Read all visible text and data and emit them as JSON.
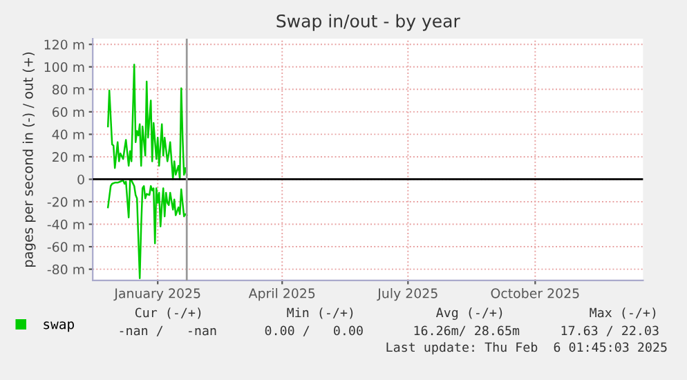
{
  "chart_data": {
    "type": "line",
    "title": "Swap in/out - by year",
    "ylabel": "pages per second in (-) / out (+)",
    "xlim": [
      "2024-11-30",
      "2026-01-02"
    ],
    "xticks": [
      {
        "value": "2025-01-16",
        "label": "January 2025"
      },
      {
        "value": "2025-04-16",
        "label": "April 2025"
      },
      {
        "value": "2025-07-16",
        "label": "July 2025"
      },
      {
        "value": "2025-10-16",
        "label": "October 2025"
      }
    ],
    "ylim": [
      -90,
      125
    ],
    "yticks": [
      {
        "value": -80,
        "label": "-80 m"
      },
      {
        "value": -60,
        "label": "-60 m"
      },
      {
        "value": -40,
        "label": "-40 m"
      },
      {
        "value": -20,
        "label": "-20 m"
      },
      0,
      {
        "value": 20,
        "label": "20 m"
      },
      {
        "value": 40,
        "label": "40 m"
      },
      {
        "value": 60,
        "label": "60 m"
      },
      {
        "value": 80,
        "label": "80 m"
      },
      {
        "value": 100,
        "label": "100 m"
      },
      {
        "value": 120,
        "label": "120 m"
      }
    ],
    "grid": true,
    "legend": "bottom left",
    "series": [
      {
        "name": "swap",
        "color": "#00cc00",
        "x": [
          "2024-12-11",
          "2024-12-12",
          "2024-12-14",
          "2024-12-15",
          "2024-12-16",
          "2024-12-18",
          "2024-12-19",
          "2024-12-20",
          "2024-12-22",
          "2024-12-23",
          "2024-12-24",
          "2024-12-26",
          "2024-12-27",
          "2024-12-28",
          "2024-12-30",
          "2024-12-31",
          "2025-01-01",
          "2025-01-02",
          "2025-01-03",
          "2025-01-04",
          "2025-01-05",
          "2025-01-07",
          "2025-01-08",
          "2025-01-09",
          "2025-01-11",
          "2025-01-12",
          "2025-01-13",
          "2025-01-15",
          "2025-01-16",
          "2025-01-17",
          "2025-01-19",
          "2025-01-20",
          "2025-01-21",
          "2025-01-23",
          "2025-01-24",
          "2025-01-25",
          "2025-01-27",
          "2025-01-28",
          "2025-01-29",
          "2025-01-31",
          "2025-02-01",
          "2025-02-02",
          "2025-02-03",
          "2025-02-04",
          "2025-02-05",
          "2025-02-06"
        ],
        "values": [
          47,
          79,
          31,
          30,
          10,
          33,
          16,
          23,
          18,
          27,
          35,
          12,
          25,
          16,
          102,
          33,
          43,
          39,
          49,
          12,
          47,
          21,
          87,
          37,
          70,
          16,
          50,
          18,
          37,
          12,
          49,
          21,
          37,
          16,
          23,
          33,
          0,
          16,
          4,
          12,
          0,
          81,
          37,
          4,
          10,
          4
        ]
      },
      {
        "color": "#00cc00",
        "x": [
          "2024-12-11",
          "2024-12-13",
          "2024-12-14",
          "2024-12-16",
          "2024-12-18",
          "2024-12-20",
          "2024-12-22",
          "2024-12-23",
          "2024-12-24",
          "2024-12-26",
          "2024-12-27",
          "2024-12-28",
          "2024-12-30",
          "2024-12-31",
          "2025-01-01",
          "2025-01-02",
          "2025-01-03",
          "2025-01-04",
          "2025-01-05",
          "2025-01-06",
          "2025-01-07",
          "2025-01-08",
          "2025-01-10",
          "2025-01-11",
          "2025-01-12",
          "2025-01-13",
          "2025-01-14",
          "2025-01-15",
          "2025-01-16",
          "2025-01-17",
          "2025-01-18",
          "2025-01-19",
          "2025-01-20",
          "2025-01-21",
          "2025-01-22",
          "2025-01-23",
          "2025-01-24",
          "2025-01-25",
          "2025-01-27",
          "2025-01-28",
          "2025-01-29",
          "2025-01-31",
          "2025-02-01",
          "2025-02-02",
          "2025-02-04",
          "2025-02-05",
          "2025-02-06"
        ],
        "values": [
          -25,
          -6,
          -4,
          -3,
          -3,
          -2,
          -1,
          -4,
          -2,
          -34,
          -1,
          -1,
          -6,
          -14,
          -17,
          -53,
          -88,
          -42,
          -8,
          -6,
          -17,
          -13,
          -14,
          -6,
          -10,
          -8,
          -57,
          -8,
          -21,
          -12,
          -42,
          -23,
          -8,
          -33,
          -12,
          -21,
          -23,
          -12,
          -27,
          -18,
          -32,
          -25,
          -31,
          -9,
          -33,
          -31,
          -32
        ]
      }
    ],
    "ref_lines": [
      {
        "axis": "y",
        "value": 0,
        "color": "#000000"
      },
      {
        "axis": "x",
        "value": "2025-02-06",
        "color": "#999999"
      }
    ],
    "annotations": [
      "Cur (-/+)",
      "Min (-/+)",
      "Avg (-/+)",
      "Max (-/+)",
      "-nan /   -nan",
      "0.00 /   0.00",
      "16.26m/ 28.65m",
      "17.63 / 22.03",
      "Last update: Thu Feb  6 01:45:03 2025"
    ]
  }
}
